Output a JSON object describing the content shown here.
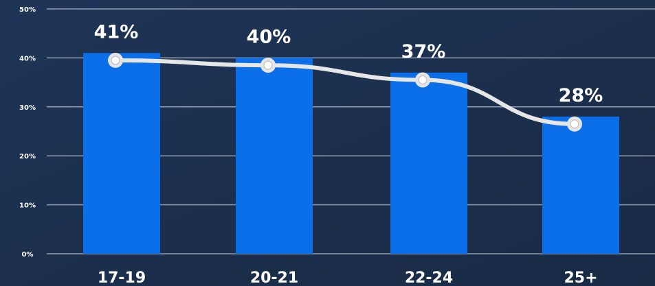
{
  "chart_data": {
    "type": "bar",
    "categories": [
      "17-19",
      "20-21",
      "22-24",
      "25+"
    ],
    "values": [
      41,
      40,
      37,
      28
    ],
    "data_labels": [
      "41%",
      "40%",
      "37%",
      "28%"
    ],
    "line_overlay": true,
    "ylim": [
      0,
      50
    ],
    "yticks": [
      0,
      10,
      20,
      30,
      40,
      50
    ],
    "ytick_labels": [
      "0%",
      "10%",
      "20%",
      "30%",
      "40%",
      "50%"
    ],
    "grid": true,
    "colors": {
      "background": "#1b2e4a",
      "bar": "#0a6fe8",
      "line": "#e6e6e6",
      "grid": "#b9c3cf",
      "text": "#ffffff"
    }
  }
}
